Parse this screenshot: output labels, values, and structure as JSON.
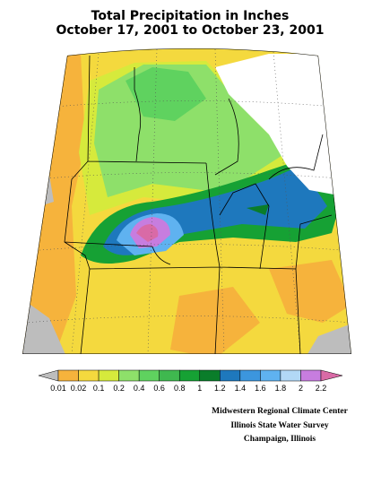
{
  "title": [
    "Total Precipitation in Inches",
    "October 17, 2001 to October 23, 2001"
  ],
  "legend": {
    "labels": [
      0.01,
      0.02,
      0.1,
      0.2,
      0.4,
      0.6,
      0.8,
      1,
      1.2,
      1.4,
      1.6,
      1.8,
      2,
      2.2
    ],
    "colors": [
      "#bdbdbd",
      "#f6b33c",
      "#f4d93e",
      "#d6ea3c",
      "#8ee06a",
      "#5fd25f",
      "#3fb84f",
      "#16a134",
      "#0a7d2a",
      "#1e78bd",
      "#3c96de",
      "#5fb2f0",
      "#b2d8f6",
      "#c77ddf",
      "#d96aa6"
    ]
  },
  "credits": [
    "Midwestern Regional Climate Center",
    "Illinois State Water Survey",
    "Champaign, Illinois"
  ]
}
